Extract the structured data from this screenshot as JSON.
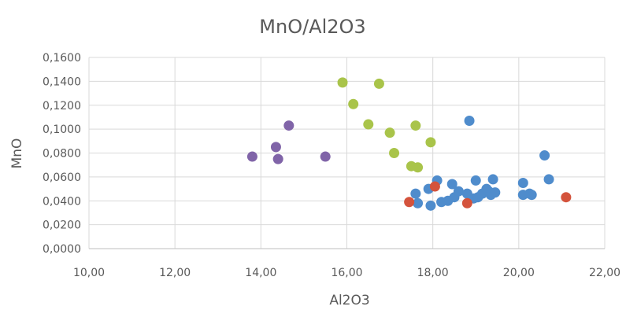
{
  "chart_data": {
    "type": "scatter",
    "title": "MnO/Al2O3",
    "xlabel": "Al2O3",
    "ylabel": "MnO",
    "xlim": [
      10,
      22
    ],
    "ylim": [
      0,
      0.16
    ],
    "x_ticks": [
      "10,00",
      "12,00",
      "14,00",
      "16,00",
      "18,00",
      "20,00",
      "22,00"
    ],
    "y_ticks": [
      "0,0000",
      "0,0200",
      "0,0400",
      "0,0600",
      "0,0800",
      "0,1000",
      "0,1200",
      "0,1400",
      "0,1600"
    ],
    "grid": true,
    "legend": "none",
    "series": [
      {
        "color": "#4f8ccc",
        "points": [
          [
            17.6,
            0.046
          ],
          [
            17.65,
            0.038
          ],
          [
            17.9,
            0.05
          ],
          [
            17.95,
            0.036
          ],
          [
            18.1,
            0.057
          ],
          [
            18.2,
            0.039
          ],
          [
            18.35,
            0.04
          ],
          [
            18.45,
            0.054
          ],
          [
            18.5,
            0.043
          ],
          [
            18.6,
            0.048
          ],
          [
            18.8,
            0.046
          ],
          [
            18.85,
            0.107
          ],
          [
            18.95,
            0.042
          ],
          [
            19.0,
            0.057
          ],
          [
            19.05,
            0.043
          ],
          [
            19.15,
            0.046
          ],
          [
            19.25,
            0.05
          ],
          [
            19.3,
            0.048
          ],
          [
            19.35,
            0.045
          ],
          [
            19.4,
            0.058
          ],
          [
            19.45,
            0.047
          ],
          [
            20.1,
            0.055
          ],
          [
            20.1,
            0.045
          ],
          [
            20.25,
            0.046
          ],
          [
            20.3,
            0.045
          ],
          [
            20.6,
            0.078
          ],
          [
            20.7,
            0.058
          ]
        ]
      },
      {
        "color": "#d4533c",
        "points": [
          [
            17.45,
            0.039
          ],
          [
            18.05,
            0.052
          ],
          [
            18.8,
            0.038
          ],
          [
            21.1,
            0.043
          ]
        ]
      },
      {
        "color": "#a9c44a",
        "points": [
          [
            15.9,
            0.139
          ],
          [
            16.15,
            0.121
          ],
          [
            16.5,
            0.104
          ],
          [
            16.75,
            0.138
          ],
          [
            17.0,
            0.097
          ],
          [
            17.1,
            0.08
          ],
          [
            17.5,
            0.069
          ],
          [
            17.6,
            0.103
          ],
          [
            17.65,
            0.068
          ],
          [
            17.95,
            0.089
          ]
        ]
      },
      {
        "color": "#8064a8",
        "points": [
          [
            13.8,
            0.077
          ],
          [
            14.35,
            0.085
          ],
          [
            14.4,
            0.075
          ],
          [
            14.65,
            0.103
          ],
          [
            15.5,
            0.077
          ]
        ]
      }
    ]
  }
}
